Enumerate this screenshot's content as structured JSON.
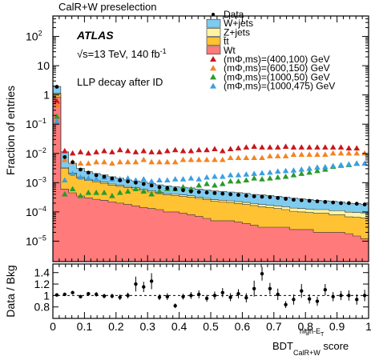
{
  "header_text": "CalR+W preselection",
  "atlas_label": "ATLAS",
  "energy_label": "√s=13 TeV, 140 fb",
  "energy_label_sup": "-1",
  "selection_label": "LLP decay after ID",
  "colors": {
    "wjets": "#7fcbef",
    "zjets": "#fff4a0",
    "ttbar": "#ffc233",
    "wt": "#ff7a7a",
    "sig1": "#c8171d",
    "sig2": "#f58320",
    "sig3": "#2a9a2a",
    "sig4": "#3aa0e0",
    "data": "#000000"
  },
  "chart_data": [
    {
      "type": "area",
      "ylabel": "Fraction of entries",
      "ylog": true,
      "ylim": [
        2e-06,
        500
      ],
      "xlim": [
        0,
        1
      ],
      "y_ticks": [
        {
          "v": 100.0,
          "label": "10",
          "sup": "2"
        },
        {
          "v": 10.0,
          "label": "10",
          "sup": ""
        },
        {
          "v": 1,
          "label": "1",
          "sup": ""
        },
        {
          "v": 0.1,
          "label": "10",
          "sup": "−1"
        },
        {
          "v": 0.01,
          "label": "10",
          "sup": "−2"
        },
        {
          "v": 0.001,
          "label": "10",
          "sup": "−3"
        },
        {
          "v": 0.0001,
          "label": "10",
          "sup": "−4"
        },
        {
          "v": 1e-05,
          "label": "10",
          "sup": "−5"
        }
      ],
      "bin_edges": [
        0,
        0.025,
        0.05,
        0.075,
        0.1,
        0.125,
        0.15,
        0.175,
        0.2,
        0.225,
        0.25,
        0.275,
        0.3,
        0.325,
        0.35,
        0.375,
        0.4,
        0.425,
        0.45,
        0.475,
        0.5,
        0.525,
        0.55,
        0.575,
        0.6,
        0.625,
        0.65,
        0.675,
        0.7,
        0.725,
        0.75,
        0.775,
        0.8,
        0.825,
        0.85,
        0.875,
        0.9,
        0.925,
        0.95,
        0.975,
        1.0
      ],
      "stack": [
        {
          "name": "Wt",
          "color_key": "wt",
          "values": [
            0.85,
            0.0006,
            0.00045,
            0.00035,
            0.0003,
            0.00027,
            0.00025,
            0.00022,
            0.0002,
            0.00018,
            0.00016,
            0.00014,
            0.00013,
            0.00012,
            0.0001,
            0.0001,
            9e-05,
            8e-05,
            7e-05,
            6e-05,
            5e-05,
            5e-05,
            5e-05,
            4.5e-05,
            4e-05,
            3.5e-05,
            3e-05,
            3e-05,
            3e-05,
            3e-05,
            2.5e-05,
            2.5e-05,
            2.5e-05,
            2e-05,
            2e-05,
            2e-05,
            2e-05,
            1.8e-05,
            1.5e-05,
            1.2e-05
          ]
        },
        {
          "name": "t̄t",
          "color_key": "ttbar",
          "values": [
            0.25,
            0.0025,
            0.0015,
            0.0011,
            0.0009,
            0.0008,
            0.0007,
            0.0006,
            0.00055,
            0.0005,
            0.00045,
            0.0004,
            0.00035,
            0.0003,
            0.00028,
            0.00026,
            0.00025,
            0.00024,
            0.00022,
            0.0002,
            0.00018,
            0.00017,
            0.00016,
            0.00015,
            0.00014,
            0.00013,
            0.00012,
            0.00011,
            0.0001,
            9e-05,
            8e-05,
            7.5e-05,
            7e-05,
            7e-05,
            7e-05,
            6e-05,
            6e-05,
            5e-05,
            5e-05,
            5e-05
          ]
        },
        {
          "name": "Z+jets",
          "color_key": "zjets",
          "values": [
            0.05,
            0.0002,
            0.00015,
            0.00012,
            0.0001,
            0.0001,
            9e-05,
            8e-05,
            7e-05,
            6e-05,
            6e-05,
            5e-05,
            5e-05,
            4e-05,
            4e-05,
            4e-05,
            4e-05,
            4e-05,
            3e-05,
            3e-05,
            3e-05,
            3e-05,
            3e-05,
            3e-05,
            3e-05,
            3e-05,
            3e-05,
            3e-05,
            3e-05,
            3e-05,
            3e-05,
            3e-05,
            3e-05,
            3e-05,
            3e-05,
            3e-05,
            3e-05,
            3e-05,
            3e-05,
            3e-05
          ]
        },
        {
          "name": "W+jets",
          "color_key": "wjets",
          "values": [
            0.8,
            0.008,
            0.0025,
            0.0015,
            0.0011,
            0.0009,
            0.0008,
            0.0007,
            0.0006,
            0.0005,
            0.00048,
            0.00045,
            0.0004,
            0.00038,
            0.00036,
            0.00034,
            0.00032,
            0.0003,
            0.00028,
            0.00027,
            0.00026,
            0.00025,
            0.00024,
            0.00023,
            0.00022,
            0.0002,
            0.0002,
            0.00019,
            0.00018,
            0.00017,
            0.00016,
            0.00015,
            0.00014,
            0.00013,
            0.00012,
            0.00012,
            0.00011,
            0.0001,
            0.0001,
            9e-05
          ]
        }
      ],
      "data": {
        "name": "Data",
        "x": [
          0.0125,
          0.0375,
          0.0625,
          0.0875,
          0.1125,
          0.1375,
          0.1625,
          0.1875,
          0.2125,
          0.2375,
          0.2625,
          0.2875,
          0.3125,
          0.3375,
          0.3625,
          0.3875,
          0.4125,
          0.4375,
          0.4625,
          0.4875,
          0.5125,
          0.5375,
          0.5625,
          0.5875,
          0.6125,
          0.6375,
          0.6625,
          0.6875,
          0.7125,
          0.7375,
          0.7625,
          0.7875,
          0.8125,
          0.8375,
          0.8625,
          0.8875,
          0.9125,
          0.9375,
          0.9625,
          0.9875
        ],
        "y": [
          1.9,
          0.0075,
          0.005,
          0.0028,
          0.0022,
          0.0018,
          0.0016,
          0.0014,
          0.0012,
          0.0011,
          0.001,
          0.0009,
          0.0008,
          0.0007,
          0.00065,
          0.0006,
          0.00055,
          0.0005,
          0.00048,
          0.00046,
          0.00044,
          0.00042,
          0.0004,
          0.00038,
          0.00036,
          0.00034,
          0.00033,
          0.00032,
          0.0003,
          0.00028,
          0.00026,
          0.00025,
          0.00024,
          0.00023,
          0.00022,
          0.00021,
          0.0002,
          0.0002,
          0.00019,
          0.00018
        ]
      },
      "signals": [
        {
          "name": "(mΦ,ms)=(400,100) GeV",
          "color_key": "sig1",
          "marker": "triangle",
          "x": [
            0.0125,
            0.0375,
            0.0625,
            0.0875,
            0.1125,
            0.1375,
            0.1625,
            0.1875,
            0.2125,
            0.2375,
            0.2625,
            0.2875,
            0.3125,
            0.3375,
            0.3625,
            0.3875,
            0.4125,
            0.4375,
            0.4625,
            0.4875,
            0.5125,
            0.5375,
            0.5625,
            0.5875,
            0.6125,
            0.6375,
            0.6625,
            0.6875,
            0.7125,
            0.7375,
            0.7625,
            0.7875,
            0.8125,
            0.8375,
            0.8625,
            0.8875,
            0.9125,
            0.9375,
            0.9625
          ],
          "y": [
            0.6,
            0.012,
            0.01,
            0.011,
            0.01,
            0.011,
            0.012,
            0.011,
            0.013,
            0.012,
            0.011,
            0.012,
            0.011,
            0.011,
            0.012,
            0.013,
            0.012,
            0.012,
            0.013,
            0.013,
            0.014,
            0.012,
            0.014,
            0.015,
            0.016,
            0.017,
            0.016,
            0.016,
            0.016,
            0.017,
            0.016,
            0.016,
            0.016,
            0.016,
            0.016,
            0.016,
            0.016,
            0.015,
            0.015
          ]
        },
        {
          "name": "(mΦ,ms)=(600,150) GeV",
          "color_key": "sig2",
          "marker": "triangle",
          "x": [
            0.0125,
            0.0375,
            0.0625,
            0.0875,
            0.1125,
            0.1375,
            0.1625,
            0.1875,
            0.2125,
            0.2375,
            0.2625,
            0.2875,
            0.3125,
            0.3375,
            0.3625,
            0.3875,
            0.4125,
            0.4375,
            0.4625,
            0.4875,
            0.5125,
            0.5375,
            0.5625,
            0.5875,
            0.6125,
            0.6375,
            0.6625,
            0.6875,
            0.7125,
            0.7375,
            0.7625,
            0.7875,
            0.8125,
            0.8375,
            0.8625,
            0.8875,
            0.9125,
            0.9375,
            0.9625,
            0.9875
          ],
          "y": [
            0.45,
            0.006,
            0.005,
            0.0045,
            0.0045,
            0.005,
            0.005,
            0.0045,
            0.005,
            0.005,
            0.005,
            0.006,
            0.005,
            0.005,
            0.005,
            0.005,
            0.006,
            0.006,
            0.006,
            0.006,
            0.006,
            0.006,
            0.007,
            0.007,
            0.007,
            0.007,
            0.007,
            0.008,
            0.008,
            0.008,
            0.009,
            0.009,
            0.009,
            0.009,
            0.009,
            0.01,
            0.01,
            0.01,
            0.01,
            0.01
          ]
        },
        {
          "name": "(mΦ,ms)=(1000,50) GeV",
          "color_key": "sig3",
          "marker": "triangle",
          "x": [
            0.0125,
            0.0375,
            0.0625,
            0.0875,
            0.1125,
            0.1375,
            0.1625,
            0.1875,
            0.2125,
            0.2375,
            0.2625,
            0.2875,
            0.3125,
            0.3375,
            0.3625,
            0.3875,
            0.4125,
            0.4375,
            0.4625,
            0.4875,
            0.5125,
            0.5375,
            0.5625,
            0.5875,
            0.6125,
            0.6375,
            0.6625,
            0.6875,
            0.7125,
            0.7375,
            0.7625,
            0.7875,
            0.8125,
            0.8375,
            0.8625,
            0.8875,
            0.9125,
            0.9375,
            0.9625
          ],
          "y": [
            0.18,
            0.0004,
            0.0006,
            0.00035,
            0.00045,
            0.00045,
            0.00045,
            0.00035,
            0.00045,
            0.0005,
            0.0006,
            0.0005,
            0.0004,
            0.0005,
            0.0006,
            0.0006,
            0.0007,
            0.0006,
            0.0008,
            0.0009,
            0.0008,
            0.0009,
            0.0011,
            0.0011,
            0.0012,
            0.0014,
            0.0013,
            0.0014,
            0.0015,
            0.0016,
            0.0018,
            0.002,
            0.0022,
            0.0025,
            0.0028,
            0.0035,
            0.0038,
            0.004,
            0.0045
          ]
        },
        {
          "name": "(mΦ,ms)=(1000,475) GeV",
          "color_key": "sig4",
          "marker": "triangle",
          "x": [
            0.0125,
            0.0375,
            0.0625,
            0.0875,
            0.1125,
            0.1375,
            0.1625,
            0.1875,
            0.2125,
            0.2375,
            0.2625,
            0.2875,
            0.3125,
            0.3375,
            0.3625,
            0.3875,
            0.4125,
            0.4375,
            0.4625,
            0.4875,
            0.5125,
            0.5375,
            0.5625,
            0.5875,
            0.6125,
            0.6375,
            0.6625,
            0.6875,
            0.7125,
            0.7375,
            0.7625,
            0.7875,
            0.8125,
            0.8375,
            0.8625,
            0.8875,
            0.9125,
            0.9375,
            0.9625,
            0.9875
          ],
          "y": [
            0.12,
            0.0012,
            0.002,
            0.0015,
            0.0014,
            0.0013,
            0.0015,
            0.0013,
            0.0013,
            0.0014,
            0.0012,
            0.0013,
            0.0011,
            0.0012,
            0.0012,
            0.0013,
            0.0013,
            0.0014,
            0.0013,
            0.0015,
            0.0016,
            0.0016,
            0.0018,
            0.0018,
            0.0019,
            0.002,
            0.0021,
            0.0022,
            0.0024,
            0.0025,
            0.0026,
            0.0028,
            0.003,
            0.0033,
            0.0034,
            0.0037,
            0.004,
            0.0042,
            0.0044,
            0.0045
          ]
        }
      ],
      "legend": [
        {
          "label": "Data",
          "kind": "marker",
          "color_key": "data"
        },
        {
          "label": "W+jets",
          "kind": "box",
          "color_key": "wjets"
        },
        {
          "label": "Z+jets",
          "kind": "box",
          "color_key": "zjets"
        },
        {
          "label": "t̄t",
          "kind": "box",
          "color_key": "ttbar"
        },
        {
          "label": "Wt",
          "kind": "box",
          "color_key": "wt"
        },
        {
          "label": "(mΦ,ms)=(400,100) GeV",
          "kind": "triangle",
          "color_key": "sig1"
        },
        {
          "label": "(mΦ,ms)=(600,150) GeV",
          "kind": "triangle",
          "color_key": "sig2"
        },
        {
          "label": "(mΦ,ms)=(1000,50) GeV",
          "kind": "triangle",
          "color_key": "sig3"
        },
        {
          "label": "(mΦ,ms)=(1000,475) GeV",
          "kind": "triangle",
          "color_key": "sig4"
        }
      ]
    },
    {
      "type": "scatter",
      "ylabel": "Data / Bkg",
      "ylim": [
        0.6,
        1.55
      ],
      "y_ticks": [
        0.8,
        1.0,
        1.2,
        1.4
      ],
      "y_tick_labels": [
        "0.8",
        "1",
        "1.2",
        "1.4"
      ],
      "xlim": [
        0,
        1
      ],
      "x_ticks": [
        0,
        0.1,
        0.2,
        0.3,
        0.4,
        0.5,
        0.6,
        0.7,
        0.8,
        0.9,
        1
      ],
      "x_tick_labels": [
        "0",
        "0.1",
        "0.2",
        "0.3",
        "0.4",
        "0.5",
        "0.6",
        "0.7",
        "0.8",
        "0.9",
        "1"
      ],
      "xlabel": "BDT",
      "xlabel_sup": "high-E",
      "xlabel_sup_sub": "T",
      "xlabel_sub": "CalR+W",
      "xlabel_tail": " score",
      "reference_line": 1.0,
      "x": [
        0.0125,
        0.0375,
        0.0625,
        0.0875,
        0.1125,
        0.1375,
        0.1625,
        0.1875,
        0.2125,
        0.2375,
        0.2625,
        0.2875,
        0.3125,
        0.3375,
        0.3625,
        0.3875,
        0.4125,
        0.4375,
        0.4625,
        0.4875,
        0.5125,
        0.5375,
        0.5625,
        0.5875,
        0.6125,
        0.6375,
        0.6625,
        0.6875,
        0.7125,
        0.7375,
        0.7625,
        0.7875,
        0.8125,
        0.8375,
        0.8625,
        0.8875,
        0.9125,
        0.9375,
        0.9625,
        0.9875
      ],
      "y": [
        1.01,
        1.02,
        1.05,
        0.98,
        1.03,
        1.02,
        0.99,
        0.99,
        0.97,
        1.0,
        1.2,
        1.15,
        1.25,
        0.97,
        0.98,
        0.82,
        0.98,
        1.0,
        1.02,
        0.95,
        1.0,
        1.05,
        0.97,
        1.03,
        0.96,
        1.12,
        1.38,
        1.12,
        1.02,
        0.84,
        0.93,
        1.08,
        0.94,
        0.9,
        1.1,
        0.98,
        1.0,
        1.0,
        0.93,
        1.0
      ],
      "err": [
        0.01,
        0.02,
        0.03,
        0.03,
        0.03,
        0.04,
        0.04,
        0.04,
        0.05,
        0.05,
        0.13,
        0.09,
        0.14,
        0.05,
        0.06,
        0.04,
        0.05,
        0.06,
        0.07,
        0.06,
        0.07,
        0.08,
        0.07,
        0.08,
        0.08,
        0.14,
        0.12,
        0.1,
        0.1,
        0.06,
        0.09,
        0.12,
        0.08,
        0.08,
        0.1,
        0.08,
        0.08,
        0.09,
        0.09,
        0.1
      ]
    }
  ]
}
